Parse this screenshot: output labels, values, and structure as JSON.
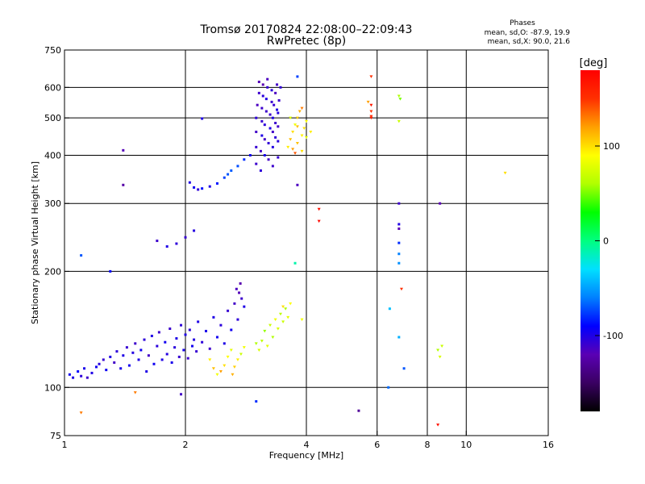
{
  "header": {
    "title": "Tromsø 20170824 22:08:00–22:09:43",
    "subtitle": "RwPretec (8p)",
    "phases_title": "Phases",
    "phases_o": "mean, sd,O: -87.9, 19.9",
    "phases_x": "mean, sd,X:  90.0, 21.6"
  },
  "colorbar": {
    "label": "[deg]",
    "ticks": [
      {
        "value": 100,
        "label": "100"
      },
      {
        "value": 0,
        "label": "0"
      },
      {
        "value": -100,
        "label": "-100"
      }
    ],
    "range": [
      -180,
      180
    ],
    "colormap": [
      "#000000",
      "#3a0062",
      "#5a00b4",
      "#0000ff",
      "#0080ff",
      "#00e0ff",
      "#00ff80",
      "#00ff00",
      "#b0ff00",
      "#ffff00",
      "#ffa000",
      "#ff3000",
      "#ff0000"
    ]
  },
  "chart_data": {
    "type": "scatter",
    "xlabel": "Frequency [MHz]",
    "ylabel": "Stationary phase Virtual Height [km]",
    "xscale": "log2",
    "yscale": "log",
    "xlim": [
      1,
      16
    ],
    "ylim": [
      75,
      750
    ],
    "x_ticks": [
      {
        "v": 1,
        "l": "1"
      },
      {
        "v": 2,
        "l": "2"
      },
      {
        "v": 4,
        "l": "4"
      },
      {
        "v": 6,
        "l": "6"
      },
      {
        "v": 8,
        "l": "8"
      },
      {
        "v": 10,
        "l": "10"
      },
      {
        "v": 16,
        "l": "16"
      }
    ],
    "y_ticks": [
      {
        "v": 75,
        "l": "75"
      },
      {
        "v": 100,
        "l": "100"
      },
      {
        "v": 200,
        "l": "200"
      },
      {
        "v": 300,
        "l": "300"
      },
      {
        "v": 400,
        "l": "400"
      },
      {
        "v": 500,
        "l": "500"
      },
      {
        "v": 600,
        "l": "600"
      },
      {
        "v": 750,
        "l": "750"
      }
    ],
    "x_grid": [
      2,
      4,
      6,
      8,
      10
    ],
    "y_grid": [
      100,
      200,
      300,
      400,
      500,
      600
    ],
    "grid": true,
    "series": [
      {
        "mode": "O",
        "points": [
          [
            1.03,
            108,
            -95
          ],
          [
            1.05,
            106,
            -100
          ],
          [
            1.08,
            110,
            -90
          ],
          [
            1.1,
            107,
            -105
          ],
          [
            1.12,
            112,
            -98
          ],
          [
            1.14,
            106,
            -110
          ],
          [
            1.17,
            109,
            -100
          ],
          [
            1.2,
            113,
            -95
          ],
          [
            1.22,
            115,
            -102
          ],
          [
            1.25,
            118,
            -108
          ],
          [
            1.27,
            111,
            -95
          ],
          [
            1.3,
            120,
            -100
          ],
          [
            1.33,
            116,
            -112
          ],
          [
            1.35,
            124,
            -105
          ],
          [
            1.38,
            112,
            -98
          ],
          [
            1.4,
            121,
            -100
          ],
          [
            1.43,
            127,
            -108
          ],
          [
            1.45,
            114,
            -96
          ],
          [
            1.48,
            123,
            -102
          ],
          [
            1.5,
            130,
            -110
          ],
          [
            1.53,
            118,
            -100
          ],
          [
            1.55,
            125,
            -95
          ],
          [
            1.58,
            133,
            -105
          ],
          [
            1.6,
            110,
            -100
          ],
          [
            1.62,
            121,
            -112
          ],
          [
            1.65,
            136,
            -100
          ],
          [
            1.67,
            115,
            -95
          ],
          [
            1.7,
            128,
            -104
          ],
          [
            1.72,
            139,
            -110
          ],
          [
            1.75,
            118,
            -100
          ],
          [
            1.78,
            131,
            -96
          ],
          [
            1.8,
            122,
            -102
          ],
          [
            1.83,
            142,
            -110
          ],
          [
            1.85,
            116,
            -98
          ],
          [
            1.88,
            127,
            -104
          ],
          [
            1.9,
            134,
            -100
          ],
          [
            1.93,
            120,
            -108
          ],
          [
            1.95,
            145,
            -105
          ],
          [
            1.98,
            125,
            -98
          ],
          [
            2.0,
            137,
            -100
          ],
          [
            2.03,
            119,
            -110
          ],
          [
            2.05,
            141,
            -104
          ],
          [
            2.08,
            128,
            -96
          ],
          [
            2.1,
            133,
            -102
          ],
          [
            2.13,
            124,
            -108
          ],
          [
            2.15,
            148,
            -100
          ],
          [
            2.2,
            131,
            -105
          ],
          [
            2.25,
            140,
            -98
          ],
          [
            2.3,
            126,
            -110
          ],
          [
            2.35,
            152,
            -100
          ],
          [
            2.4,
            135,
            -96
          ],
          [
            2.45,
            145,
            -104
          ],
          [
            2.5,
            130,
            -100
          ],
          [
            2.55,
            158,
            -108
          ],
          [
            2.6,
            141,
            -95
          ],
          [
            2.65,
            165,
            -112
          ],
          [
            2.7,
            150,
            -105
          ],
          [
            2.72,
            176,
            -118
          ],
          [
            2.74,
            186,
            -122
          ],
          [
            2.76,
            170,
            -110
          ],
          [
            2.8,
            162,
            -100
          ],
          [
            2.68,
            180,
            -115
          ],
          [
            2.05,
            340,
            -100
          ],
          [
            2.1,
            330,
            -95
          ],
          [
            2.15,
            326,
            -105
          ],
          [
            2.2,
            328,
            -88
          ],
          [
            2.3,
            332,
            -100
          ],
          [
            2.4,
            338,
            -85
          ],
          [
            2.5,
            350,
            -75
          ],
          [
            2.55,
            357,
            -70
          ],
          [
            2.6,
            365,
            -68
          ],
          [
            2.7,
            375,
            -72
          ],
          [
            2.8,
            390,
            -80
          ],
          [
            2.9,
            400,
            -95
          ],
          [
            3.0,
            380,
            -110
          ],
          [
            3.0,
            420,
            -108
          ],
          [
            3.0,
            460,
            -112
          ],
          [
            3.0,
            500,
            -105
          ],
          [
            3.02,
            540,
            -115
          ],
          [
            3.05,
            580,
            -110
          ],
          [
            3.05,
            620,
            -118
          ],
          [
            3.08,
            365,
            -105
          ],
          [
            3.08,
            410,
            -112
          ],
          [
            3.1,
            450,
            -100
          ],
          [
            3.1,
            490,
            -108
          ],
          [
            3.1,
            530,
            -110
          ],
          [
            3.12,
            570,
            -104
          ],
          [
            3.12,
            610,
            -120
          ],
          [
            3.15,
            400,
            -98
          ],
          [
            3.15,
            440,
            -112
          ],
          [
            3.15,
            480,
            -105
          ],
          [
            3.18,
            520,
            -110
          ],
          [
            3.18,
            560,
            -100
          ],
          [
            3.2,
            600,
            -108
          ],
          [
            3.2,
            630,
            -115
          ],
          [
            3.22,
            390,
            -112
          ],
          [
            3.22,
            430,
            -106
          ],
          [
            3.25,
            470,
            -100
          ],
          [
            3.25,
            510,
            -110
          ],
          [
            3.28,
            550,
            -108
          ],
          [
            3.28,
            590,
            -104
          ],
          [
            3.3,
            375,
            -110
          ],
          [
            3.3,
            420,
            -102
          ],
          [
            3.3,
            460,
            -112
          ],
          [
            3.3,
            500,
            -100
          ],
          [
            3.32,
            540,
            -108
          ],
          [
            3.35,
            580,
            -115
          ],
          [
            3.35,
            445,
            -105
          ],
          [
            3.35,
            485,
            -110
          ],
          [
            3.38,
            525,
            -100
          ],
          [
            3.38,
            610,
            -112
          ],
          [
            3.4,
            395,
            -108
          ],
          [
            3.4,
            435,
            -104
          ],
          [
            3.4,
            475,
            -112
          ],
          [
            3.4,
            515,
            -102
          ],
          [
            3.42,
            555,
            -110
          ],
          [
            3.45,
            600,
            -106
          ],
          [
            1.4,
            412,
            -118
          ],
          [
            1.4,
            335,
            -125
          ],
          [
            1.7,
            240,
            -110
          ],
          [
            1.8,
            232,
            -100
          ],
          [
            1.9,
            236,
            -105
          ],
          [
            2.0,
            245,
            -108
          ],
          [
            2.1,
            255,
            -102
          ],
          [
            1.3,
            200,
            -90
          ],
          [
            1.1,
            220,
            -70
          ],
          [
            2.2,
            498,
            -100
          ],
          [
            1.95,
            96,
            -112
          ],
          [
            3.0,
            92,
            -80
          ],
          [
            3.8,
            640,
            -75
          ],
          [
            3.8,
            335,
            -115
          ],
          [
            3.75,
            210,
            -10
          ],
          [
            6.8,
            300,
            -110
          ],
          [
            6.8,
            265,
            -100
          ],
          [
            6.8,
            258,
            -120
          ],
          [
            6.8,
            237,
            -80
          ],
          [
            6.8,
            222,
            -60
          ],
          [
            6.8,
            210,
            -55
          ],
          [
            6.8,
            135,
            -45
          ],
          [
            8.6,
            300,
            -120
          ],
          [
            6.45,
            160,
            -40
          ],
          [
            5.4,
            87,
            -130
          ],
          [
            6.4,
            100,
            -65
          ],
          [
            7.0,
            112,
            -70
          ]
        ]
      },
      {
        "mode": "X",
        "points": [
          [
            2.3,
            118,
            95
          ],
          [
            2.35,
            112,
            110
          ],
          [
            2.4,
            108,
            85
          ],
          [
            2.45,
            110,
            120
          ],
          [
            2.5,
            114,
            100
          ],
          [
            2.55,
            120,
            90
          ],
          [
            2.6,
            125,
            80
          ],
          [
            2.62,
            108,
            115
          ],
          [
            2.65,
            113,
            105
          ],
          [
            2.7,
            118,
            95
          ],
          [
            2.75,
            122,
            70
          ],
          [
            2.8,
            127,
            85
          ],
          [
            3.0,
            130,
            60
          ],
          [
            3.05,
            125,
            75
          ],
          [
            3.1,
            132,
            65
          ],
          [
            3.15,
            140,
            55
          ],
          [
            3.2,
            128,
            80
          ],
          [
            3.25,
            145,
            70
          ],
          [
            3.3,
            135,
            60
          ],
          [
            3.35,
            150,
            85
          ],
          [
            3.4,
            142,
            75
          ],
          [
            3.45,
            155,
            65
          ],
          [
            3.5,
            148,
            70
          ],
          [
            3.55,
            160,
            60
          ],
          [
            3.6,
            152,
            80
          ],
          [
            3.65,
            165,
            90
          ],
          [
            3.5,
            162,
            100
          ],
          [
            3.6,
            420,
            95
          ],
          [
            3.65,
            440,
            110
          ],
          [
            3.7,
            460,
            100
          ],
          [
            3.75,
            480,
            85
          ],
          [
            3.8,
            500,
            105
          ],
          [
            3.85,
            520,
            115
          ],
          [
            3.9,
            450,
            95
          ],
          [
            3.95,
            470,
            100
          ],
          [
            4.0,
            490,
            90
          ],
          [
            3.7,
            415,
            120
          ],
          [
            3.8,
            430,
            110
          ],
          [
            3.9,
            410,
            100
          ],
          [
            4.0,
            445,
            80
          ],
          [
            3.65,
            500,
            75
          ],
          [
            3.9,
            530,
            130
          ],
          [
            4.1,
            460,
            95
          ],
          [
            3.75,
            405,
            140
          ],
          [
            3.8,
            475,
            110
          ],
          [
            5.8,
            640,
            150
          ],
          [
            5.7,
            550,
            120
          ],
          [
            5.8,
            520,
            150
          ],
          [
            5.8,
            540,
            165
          ],
          [
            5.8,
            500,
            160
          ],
          [
            5.8,
            505,
            155
          ],
          [
            6.8,
            570,
            60
          ],
          [
            6.85,
            560,
            50
          ],
          [
            6.8,
            490,
            70
          ],
          [
            6.9,
            180,
            150
          ],
          [
            8.5,
            125,
            60
          ],
          [
            8.6,
            120,
            75
          ],
          [
            8.7,
            128,
            70
          ],
          [
            8.5,
            80,
            170
          ],
          [
            12.5,
            360,
            100
          ],
          [
            4.3,
            290,
            170
          ],
          [
            4.3,
            270,
            175
          ],
          [
            3.9,
            150,
            85
          ],
          [
            1.1,
            86,
            130
          ],
          [
            1.5,
            97,
            130
          ]
        ]
      }
    ]
  }
}
